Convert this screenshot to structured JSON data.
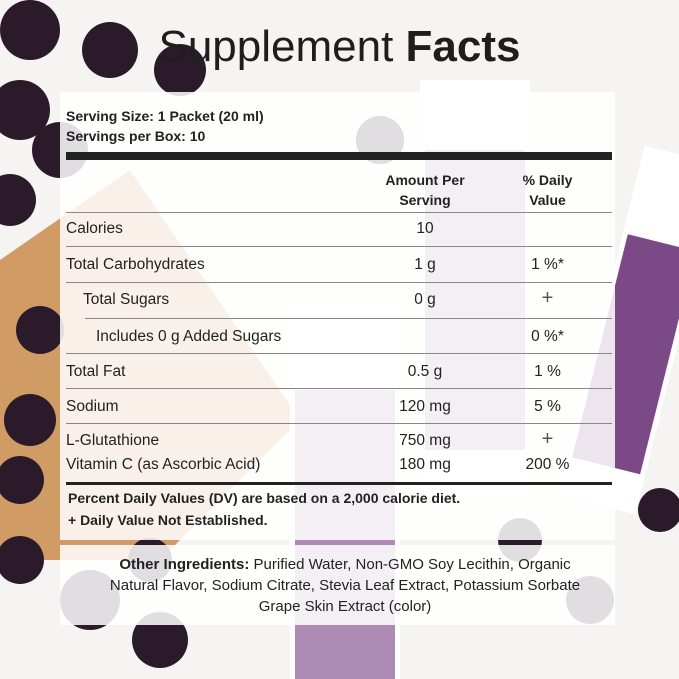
{
  "title": {
    "main": "Supplement",
    "bold": "Facts"
  },
  "serving": {
    "size": "Serving Size: 1 Packet (20 ml)",
    "per_box": "Servings per Box: 10"
  },
  "table": {
    "headers": {
      "amount": "Amount Per Serving",
      "dv": "% Daily Value"
    },
    "rows": [
      {
        "name": "Calories",
        "amount": "10"
      },
      {
        "name": "Total Carbohydrates",
        "amount": "1 g",
        "dv": "1 %*"
      },
      {
        "name": "Total Sugars",
        "amount": "0 g",
        "dv": "+"
      },
      {
        "name": "Includes 0 g Added Sugars",
        "dv": "0 %*"
      },
      {
        "name": "Total Fat",
        "amount": "0.5 g",
        "dv": "1 %"
      },
      {
        "name": "Sodium",
        "amount": "120 mg",
        "dv": "5 %"
      },
      {
        "name": "L-Glutathione",
        "amount": "750 mg",
        "dv": "+"
      },
      {
        "name": "Vitamin C (as Ascorbic Acid)",
        "amount": "180 mg",
        "dv": "200 %"
      }
    ]
  },
  "footnotes": [
    "Percent Daily Values (DV) are based on a 2,000 calorie diet.",
    "+ Daily Value Not Established."
  ],
  "ingredients": {
    "label": "Other Ingredients:",
    "lines": [
      "Purified Water, Non-GMO Soy Lecithin, Organic",
      "Natural Flavor, Sodium Citrate, Stevia Leaf Extract, Potassium Sorbate",
      "Grape Skin Extract (color)"
    ]
  }
}
